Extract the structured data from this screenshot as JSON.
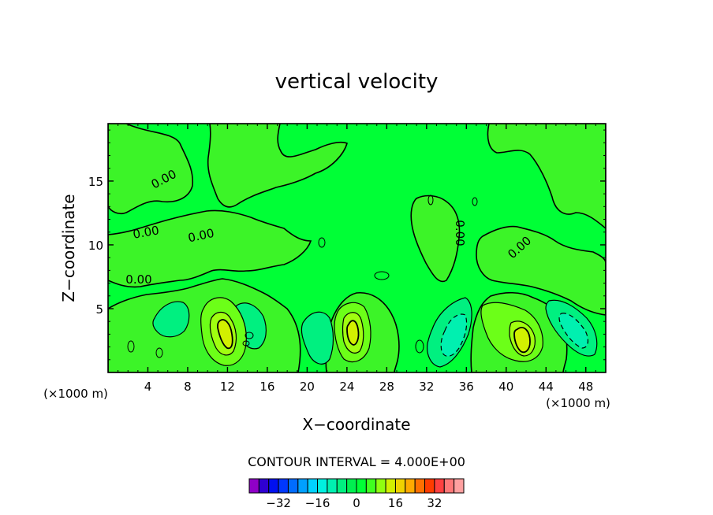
{
  "chart_data": {
    "type": "contour",
    "title": "vertical velocity",
    "xlabel": "X−coordinate",
    "ylabel": "Z−coordinate",
    "x_units": "(×1000 m)",
    "xlim": [
      0,
      50
    ],
    "ylim": [
      0,
      19.5
    ],
    "x_ticks": [
      4,
      8,
      12,
      16,
      20,
      24,
      28,
      32,
      36,
      40,
      44,
      48
    ],
    "y_ticks": [
      5,
      10,
      15
    ],
    "contour_interval_label": "CONTOUR INTERVAL = 4.000E+00",
    "contour_interval": 4,
    "contour_labels": [
      "0.00",
      "0.00",
      "0.00",
      "0.00",
      "0.00",
      "0.00"
    ],
    "colorbar": {
      "ticks": [
        -32,
        -16,
        0,
        16,
        32
      ],
      "tick_labels": [
        "−32",
        "−16",
        "0",
        "16",
        "32"
      ],
      "colors": [
        "#8f00c8",
        "#2f00d2",
        "#0010f0",
        "#0038ff",
        "#006cff",
        "#00a0ff",
        "#00d2ff",
        "#00f0e0",
        "#00f0b0",
        "#00f080",
        "#00f050",
        "#00ff36",
        "#40ff20",
        "#90ff10",
        "#d2f000",
        "#f0d200",
        "#ffaa00",
        "#ff7000",
        "#ff3c00",
        "#ff4040",
        "#ff7878",
        "#ffa0a0"
      ]
    },
    "features": [
      {
        "kind": "updraft",
        "x": 12,
        "z": 3.3,
        "peak": 8
      },
      {
        "kind": "updraft",
        "x": 24.5,
        "z": 3.1,
        "peak": 8
      },
      {
        "kind": "updraft",
        "x": 41.5,
        "z": 2.9,
        "peak": 8
      },
      {
        "kind": "downdraft",
        "x": 4.7,
        "z": 4.3,
        "peak": -4
      },
      {
        "kind": "downdraft",
        "x": 14.2,
        "z": 3.6,
        "peak": -4
      },
      {
        "kind": "downdraft",
        "x": 21.6,
        "z": 2.6,
        "peak": -4
      },
      {
        "kind": "downdraft",
        "x": 34,
        "z": 2.6,
        "peak": -8
      },
      {
        "kind": "downdraft",
        "x": 46,
        "z": 3.3,
        "peak": -8
      }
    ]
  }
}
